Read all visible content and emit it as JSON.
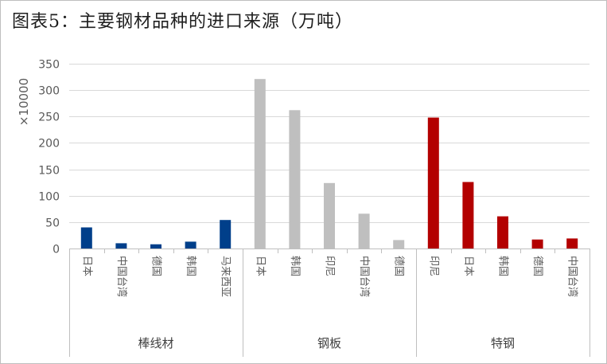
{
  "title": "图表5：主要钢材品种的进口来源（万吨）",
  "unit_label": "×10000",
  "chart_data": {
    "type": "bar",
    "title": "图表5：主要钢材品种的进口来源（万吨）",
    "ylabel": "×10000",
    "ylim": [
      0,
      350
    ],
    "yticks": [
      0,
      50,
      100,
      150,
      200,
      250,
      300,
      350
    ],
    "grid": true,
    "legend": "none",
    "groups": [
      {
        "name": "棒线材",
        "color": "#003f8a",
        "categories": [
          "日本",
          "中国台湾",
          "德国",
          "韩国",
          "马来西亚"
        ],
        "values": [
          40,
          10,
          8,
          13,
          54
        ]
      },
      {
        "name": "钢板",
        "color": "#bfbfbf",
        "categories": [
          "日本",
          "韩国",
          "印尼",
          "中国台湾",
          "德国"
        ],
        "values": [
          321,
          262,
          124,
          66,
          16
        ]
      },
      {
        "name": "特钢",
        "color": "#b30000",
        "categories": [
          "印尼",
          "日本",
          "韩国",
          "德国",
          "中国台湾"
        ],
        "values": [
          248,
          126,
          61,
          17,
          19
        ]
      }
    ]
  }
}
